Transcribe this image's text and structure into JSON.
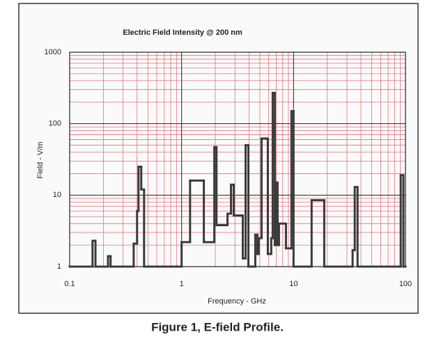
{
  "chart_data": {
    "type": "line",
    "step": "post",
    "title": "Electric Field Intensity @ 200 nm",
    "x_label": "Frequency - GHz",
    "y_label": "Field - V/m",
    "caption": "Figure 1, E-field Profile.",
    "x": [
      0.1,
      0.16,
      0.17,
      0.22,
      0.232,
      0.373,
      0.4,
      0.412,
      0.436,
      0.462,
      1.0,
      1.19,
      1.58,
      1.96,
      2.05,
      2.57,
      2.76,
      2.92,
      3.52,
      3.73,
      3.95,
      4.55,
      4.75,
      4.89,
      5.18,
      5.89,
      6.32,
      6.51,
      6.8,
      6.9,
      7.2,
      7.41,
      8.55,
      9.58,
      10.0,
      14.5,
      18.8,
      33.7,
      35.2,
      37.3,
      90.6,
      95.8
    ],
    "series": [
      {
        "color": "#3a3a3a",
        "values": [
          1,
          2.3,
          1,
          1.4,
          1,
          2.1,
          6,
          25,
          12,
          1,
          2.2,
          16,
          2.2,
          47,
          3.8,
          5.5,
          14,
          5.2,
          1.3,
          50,
          1,
          2.8,
          1.5,
          2.5,
          62,
          1.5,
          2.5,
          270,
          2,
          15,
          2,
          4,
          1.8,
          150,
          1,
          8.5,
          1,
          1.7,
          13,
          1,
          19,
          1
        ]
      }
    ],
    "xlim": [
      0.1,
      100
    ],
    "ylim": [
      1,
      1000
    ],
    "xticks": [
      0.1,
      1,
      10,
      100
    ],
    "yticks": [
      1,
      10,
      100,
      1000
    ],
    "log_x": true,
    "log_y": true,
    "grid": true,
    "minor_grid": true,
    "grid_color": "#e0707c",
    "major_grid_color": "#222222"
  }
}
